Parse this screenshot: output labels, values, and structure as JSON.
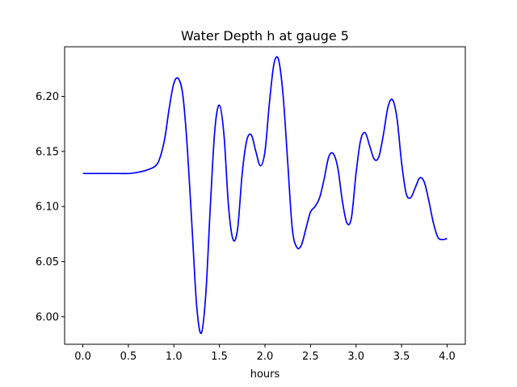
{
  "chart_data": {
    "type": "line",
    "title": "Water Depth h at gauge 5",
    "xlabel": "hours",
    "ylabel": "",
    "xlim": [
      -0.2,
      4.2
    ],
    "ylim": [
      5.975,
      6.245
    ],
    "xticks": [
      0.0,
      0.5,
      1.0,
      1.5,
      2.0,
      2.5,
      3.0,
      3.5,
      4.0
    ],
    "xtick_labels": [
      "0.0",
      "0.5",
      "1.0",
      "1.5",
      "2.0",
      "2.5",
      "3.0",
      "3.5",
      "4.0"
    ],
    "yticks": [
      6.0,
      6.05,
      6.1,
      6.15,
      6.2
    ],
    "ytick_labels": [
      "6.00",
      "6.05",
      "6.10",
      "6.15",
      "6.20"
    ],
    "grid": false,
    "series": [
      {
        "color": "#0000ff",
        "x": [
          0.0,
          0.1,
          0.2,
          0.3,
          0.4,
          0.5,
          0.6,
          0.7,
          0.8,
          0.85,
          0.9,
          0.95,
          1.0,
          1.05,
          1.1,
          1.15,
          1.2,
          1.25,
          1.3,
          1.35,
          1.4,
          1.45,
          1.5,
          1.55,
          1.6,
          1.65,
          1.7,
          1.75,
          1.8,
          1.85,
          1.9,
          1.95,
          2.0,
          2.05,
          2.1,
          2.15,
          2.2,
          2.25,
          2.3,
          2.35,
          2.4,
          2.45,
          2.5,
          2.55,
          2.6,
          2.65,
          2.7,
          2.75,
          2.8,
          2.85,
          2.9,
          2.95,
          3.0,
          3.05,
          3.1,
          3.15,
          3.2,
          3.25,
          3.3,
          3.35,
          3.4,
          3.45,
          3.5,
          3.55,
          3.6,
          3.65,
          3.7,
          3.75,
          3.8,
          3.85,
          3.9,
          3.95,
          4.0
        ],
        "y": [
          6.13,
          6.13,
          6.13,
          6.13,
          6.13,
          6.13,
          6.131,
          6.133,
          6.137,
          6.145,
          6.162,
          6.19,
          6.212,
          6.216,
          6.2,
          6.15,
          6.08,
          6.01,
          5.985,
          6.02,
          6.1,
          6.17,
          6.192,
          6.165,
          6.1,
          6.07,
          6.08,
          6.13,
          6.16,
          6.165,
          6.15,
          6.137,
          6.15,
          6.195,
          6.23,
          6.233,
          6.2,
          6.14,
          6.08,
          6.063,
          6.065,
          6.08,
          6.095,
          6.1,
          6.108,
          6.125,
          6.145,
          6.148,
          6.135,
          6.105,
          6.085,
          6.09,
          6.13,
          6.16,
          6.167,
          6.155,
          6.143,
          6.145,
          6.165,
          6.19,
          6.197,
          6.18,
          6.14,
          6.112,
          6.108,
          6.117,
          6.126,
          6.122,
          6.105,
          6.085,
          6.072,
          6.07,
          6.071
        ]
      }
    ]
  }
}
